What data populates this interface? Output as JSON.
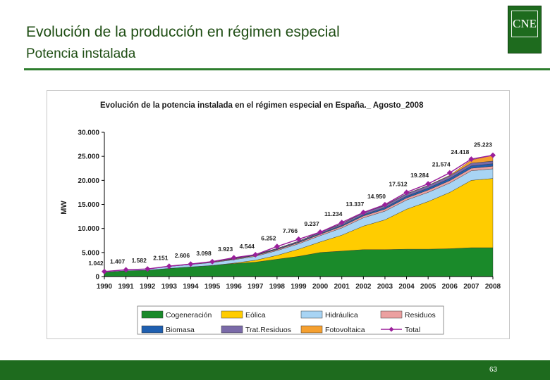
{
  "slide": {
    "title": "Evolución de la producción en régimen especial",
    "subtitle": "Potencia instalada",
    "logo_text": "CNE",
    "page_number": "63"
  },
  "colors": {
    "brand_green": "#1e6b1e",
    "title_green": "#1f4e14"
  },
  "chart_data": {
    "type": "area",
    "stacked": true,
    "title": "Evolución de la potencia instalada en el régimen especial en España._ Agosto_2008",
    "ylabel": "MW",
    "xlabel": "",
    "ylim": [
      0,
      30000
    ],
    "yticks": [
      0,
      5000,
      10000,
      15000,
      20000,
      25000,
      30000
    ],
    "ytick_labels": [
      "0",
      "5.000",
      "10.000",
      "15.000",
      "20.000",
      "25.000",
      "30.000"
    ],
    "grid": false,
    "legend_position": "bottom",
    "x": [
      "1990",
      "1991",
      "1992",
      "1993",
      "1994",
      "1995",
      "1996",
      "1997",
      "1998",
      "1999",
      "2000",
      "2001",
      "2002",
      "2003",
      "2004",
      "2005",
      "2006",
      "2007",
      "2008"
    ],
    "series": [
      {
        "name": "Cogeneración",
        "color": "#1a8a2a",
        "values": [
          900,
          1200,
          1300,
          1700,
          2000,
          2300,
          2700,
          3000,
          3600,
          4200,
          5000,
          5300,
          5600,
          5600,
          5700,
          5700,
          5800,
          6000,
          6000
        ]
      },
      {
        "name": "Eólica",
        "color": "#ffcc00",
        "values": [
          0,
          0,
          0,
          0,
          0,
          10,
          100,
          400,
          800,
          1500,
          2200,
          3300,
          4900,
          6200,
          8300,
          9900,
          11700,
          14000,
          14400
        ]
      },
      {
        "name": "Hidráulica",
        "color": "#a8d4f4",
        "values": [
          120,
          180,
          250,
          400,
          500,
          600,
          700,
          800,
          1000,
          1100,
          1300,
          1500,
          1700,
          1800,
          1900,
          1900,
          1950,
          2000,
          2000
        ]
      },
      {
        "name": "Residuos",
        "color": "#eba0a0",
        "values": [
          20,
          25,
          30,
          50,
          80,
          100,
          150,
          180,
          200,
          250,
          300,
          350,
          400,
          420,
          450,
          480,
          500,
          520,
          540
        ]
      },
      {
        "name": "Biomasa",
        "color": "#1f5fb0",
        "values": [
          2,
          2,
          2,
          5,
          20,
          40,
          60,
          80,
          100,
          120,
          150,
          200,
          250,
          300,
          350,
          400,
          450,
          500,
          520
        ]
      },
      {
        "name": "Trat.Residuos",
        "color": "#7a6aa8",
        "values": [
          0,
          0,
          0,
          0,
          5,
          20,
          60,
          100,
          140,
          190,
          250,
          330,
          410,
          470,
          500,
          520,
          540,
          560,
          560
        ]
      },
      {
        "name": "Fotovoltaica",
        "color": "#f5a030",
        "values": [
          0,
          0,
          0,
          0,
          1,
          1,
          1,
          2,
          3,
          4,
          5,
          10,
          15,
          25,
          40,
          60,
          120,
          650,
          1200
        ]
      }
    ],
    "total": {
      "name": "Total",
      "color": "#9b1f9b",
      "values": [
        1042,
        1407,
        1582,
        2151,
        2606,
        3098,
        3923,
        4544,
        6252,
        7766,
        9237,
        11234,
        13337,
        14950,
        17512,
        19284,
        21574,
        24418,
        25223
      ],
      "labels": [
        "1.042",
        "1.407",
        "1.582",
        "2.151",
        "2.606",
        "3.098",
        "3.923",
        "4.544",
        "6.252",
        "7.766",
        "9.237",
        "11.234",
        "13.337",
        "14.950",
        "17.512",
        "19.284",
        "21.574",
        "24.418",
        "25.223"
      ]
    }
  }
}
